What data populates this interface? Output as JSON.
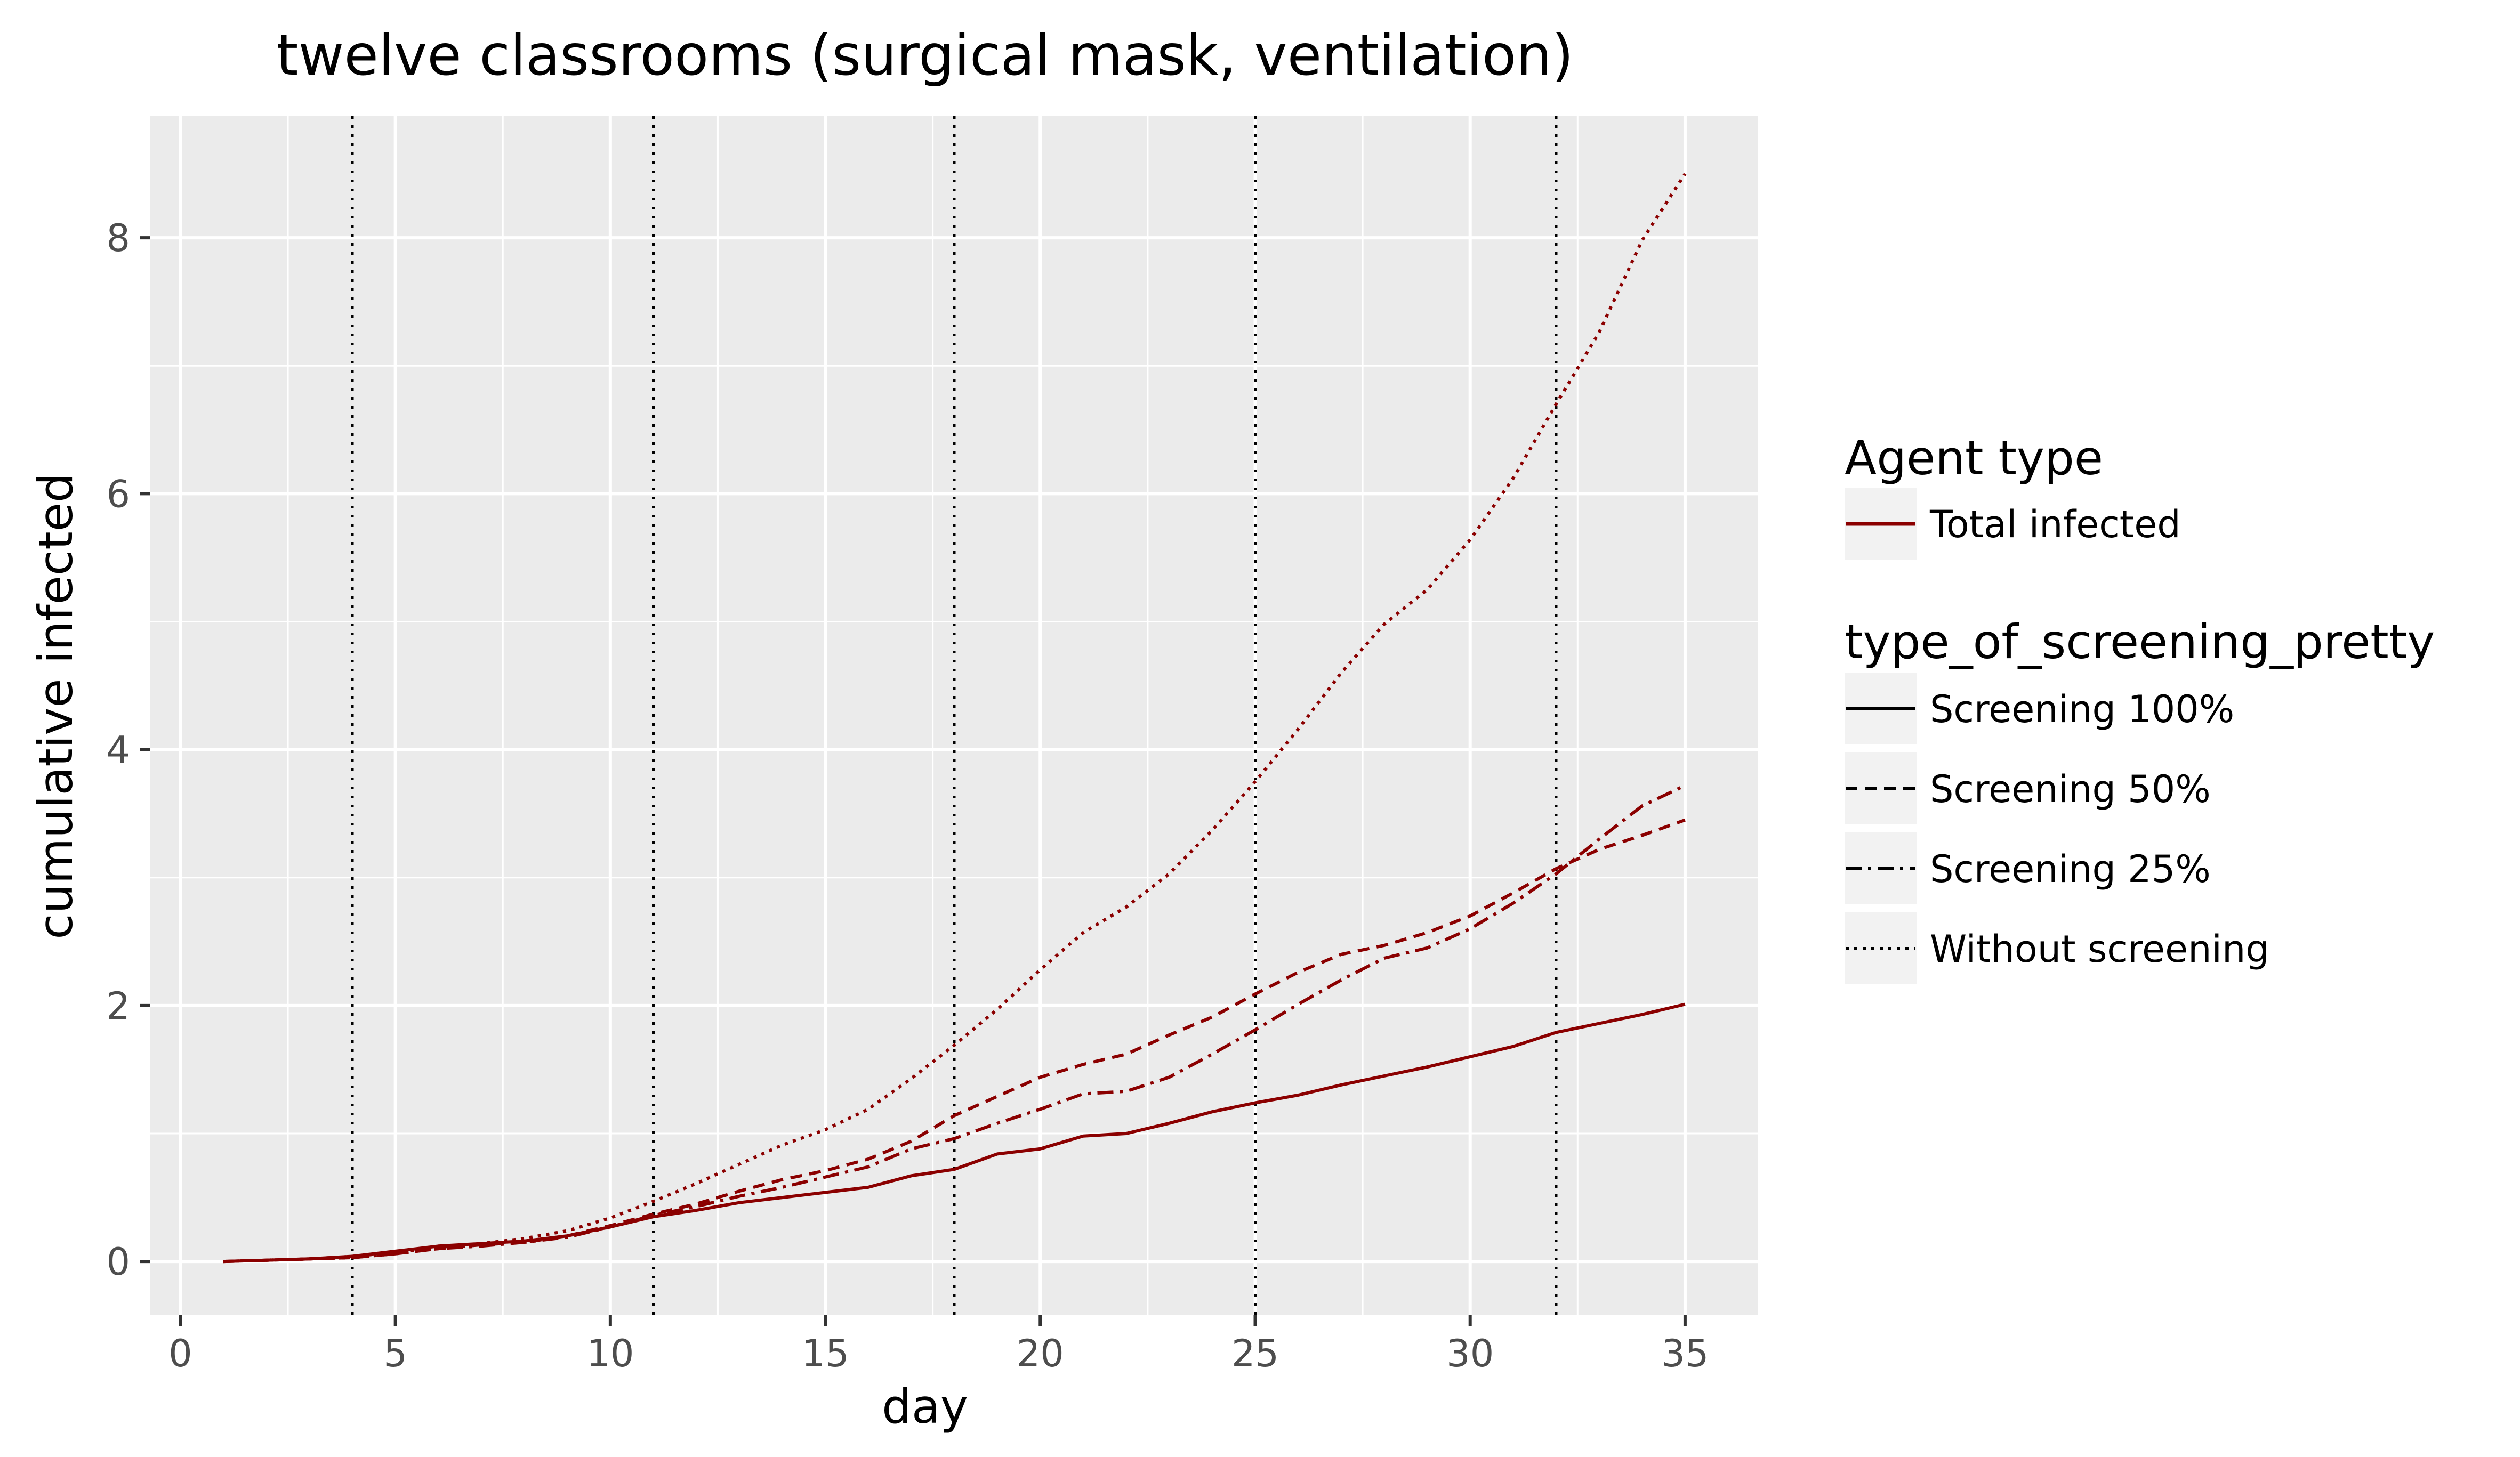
{
  "chart_data": {
    "type": "line",
    "title": "twelve classrooms (surgical mask, ventilation)",
    "xlabel": "day",
    "ylabel": "cumulative infected",
    "xlim": [
      -0.7,
      36.7
    ],
    "ylim": [
      -0.42,
      8.95
    ],
    "x_ticks": [
      0,
      5,
      10,
      15,
      20,
      25,
      30,
      35
    ],
    "y_ticks": [
      0,
      2,
      4,
      6,
      8
    ],
    "grid": true,
    "legend_position": "right",
    "series_color": "#8b0000",
    "vlines": [
      4,
      11,
      18,
      25,
      32
    ],
    "x": [
      1,
      2,
      3,
      4,
      5,
      6,
      7,
      8,
      9,
      10,
      11,
      12,
      13,
      14,
      15,
      16,
      17,
      18,
      19,
      20,
      21,
      22,
      23,
      24,
      25,
      26,
      27,
      28,
      29,
      30,
      31,
      32,
      33,
      34,
      35
    ],
    "series": [
      {
        "name": "Screening 100%",
        "linetype": "solid",
        "values": [
          0.0,
          0.01,
          0.02,
          0.04,
          0.08,
          0.12,
          0.14,
          0.16,
          0.2,
          0.27,
          0.35,
          0.4,
          0.46,
          0.5,
          0.54,
          0.58,
          0.67,
          0.72,
          0.84,
          0.88,
          0.98,
          1.0,
          1.08,
          1.17,
          1.24,
          1.3,
          1.38,
          1.45,
          1.52,
          1.6,
          1.68,
          1.79,
          1.86,
          1.93,
          2.01
        ]
      },
      {
        "name": "Screening 50%",
        "linetype": "dashed",
        "values": [
          0.0,
          0.01,
          0.02,
          0.03,
          0.06,
          0.1,
          0.13,
          0.15,
          0.2,
          0.28,
          0.37,
          0.45,
          0.55,
          0.64,
          0.71,
          0.8,
          0.94,
          1.14,
          1.29,
          1.44,
          1.54,
          1.62,
          1.77,
          1.91,
          2.09,
          2.26,
          2.4,
          2.47,
          2.57,
          2.7,
          2.88,
          3.07,
          3.22,
          3.33,
          3.45
        ]
      },
      {
        "name": "Screening 25%",
        "linetype": "dashdot",
        "values": [
          0.0,
          0.01,
          0.02,
          0.03,
          0.06,
          0.1,
          0.12,
          0.15,
          0.19,
          0.27,
          0.36,
          0.43,
          0.51,
          0.58,
          0.66,
          0.74,
          0.88,
          0.96,
          1.08,
          1.19,
          1.31,
          1.33,
          1.44,
          1.62,
          1.81,
          2.01,
          2.2,
          2.37,
          2.45,
          2.6,
          2.8,
          3.03,
          3.3,
          3.56,
          3.72
        ]
      },
      {
        "name": "Without screening",
        "linetype": "dotted",
        "values": [
          0.0,
          0.01,
          0.02,
          0.04,
          0.07,
          0.11,
          0.14,
          0.18,
          0.24,
          0.34,
          0.47,
          0.61,
          0.76,
          0.91,
          1.03,
          1.19,
          1.43,
          1.69,
          1.97,
          2.28,
          2.57,
          2.77,
          3.03,
          3.37,
          3.75,
          4.16,
          4.6,
          4.98,
          5.25,
          5.64,
          6.12,
          6.7,
          7.26,
          7.98,
          8.5
        ]
      }
    ],
    "legend": {
      "agent_title": "Agent type",
      "agent_items": [
        "Total infected"
      ],
      "screening_title": "type_of_screening_pretty",
      "screening_items": [
        "Screening 100%",
        "Screening 50%",
        "Screening 25%",
        "Without screening"
      ]
    }
  }
}
